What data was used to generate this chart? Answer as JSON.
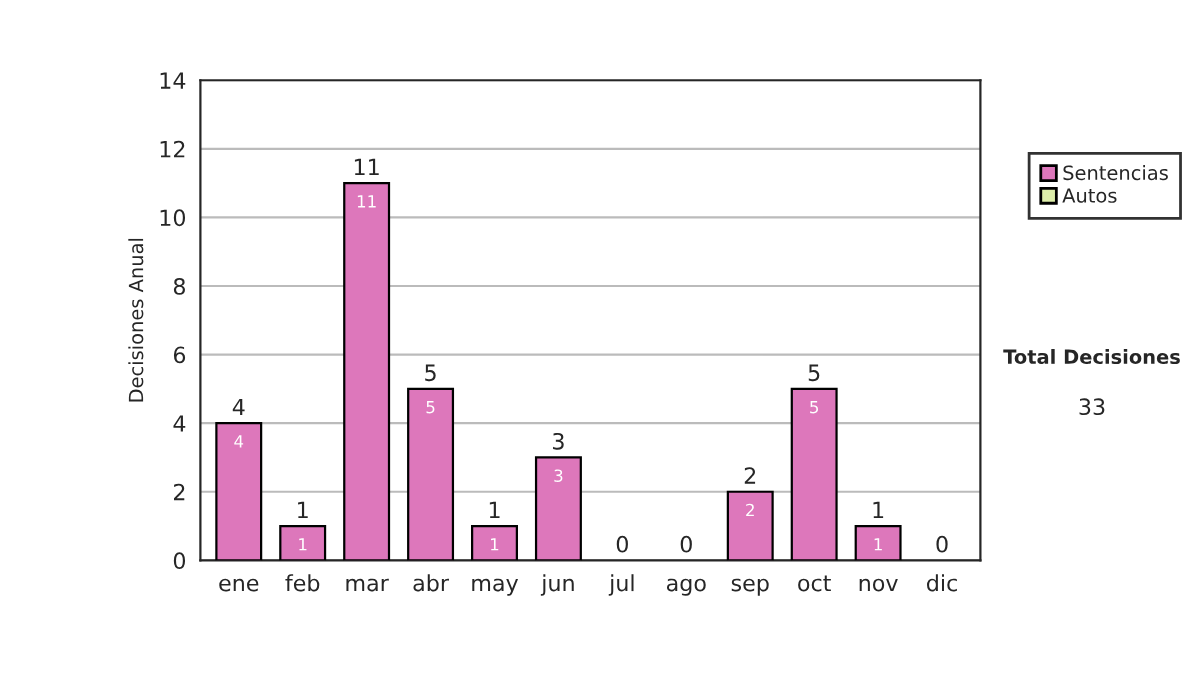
{
  "chart_data": {
    "type": "bar",
    "ylabel": "Decisiones Anual",
    "categories": [
      "ene",
      "feb",
      "mar",
      "abr",
      "may",
      "jun",
      "jul",
      "ago",
      "sep",
      "oct",
      "nov",
      "dic"
    ],
    "stacked": true,
    "series": [
      {
        "name": "Sentencias",
        "color": "#dd77bb",
        "values": [
          4,
          1,
          11,
          5,
          1,
          3,
          0,
          0,
          2,
          5,
          1,
          0
        ],
        "value_labels": [
          "4",
          "1",
          "11",
          "5",
          "1",
          "3",
          null,
          null,
          "2",
          "5",
          "1",
          null
        ]
      },
      {
        "name": "Autos",
        "color": "#ddeeaa",
        "values": [
          0,
          0,
          0,
          0,
          0,
          0,
          0,
          0,
          0,
          0,
          0,
          0
        ]
      }
    ],
    "totals": [
      "4",
      "1",
      "11",
      "5",
      "1",
      "3",
      "0",
      "0",
      "2",
      "5",
      "1",
      "0"
    ],
    "ylim": [
      0,
      14
    ],
    "yticks": [
      0,
      2,
      4,
      6,
      8,
      10,
      12,
      14
    ],
    "grid": "y",
    "legend": "right",
    "annotations": [
      "Total Decisiones",
      "33"
    ]
  }
}
